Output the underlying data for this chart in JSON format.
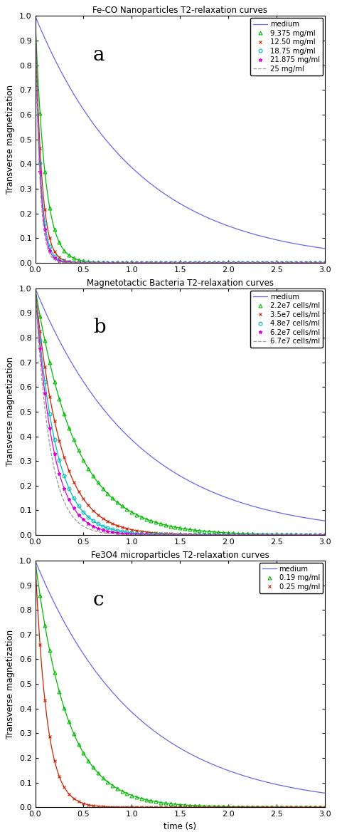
{
  "panel_a": {
    "title": "Fe-CO Nanoparticles T2-relaxation curves",
    "label": "a",
    "series": [
      {
        "label": "medium",
        "color": "#6666ee",
        "linestyle": "-",
        "marker": null,
        "T2": 1.05
      },
      {
        "label": "9.375 mg/ml",
        "color": "#00bb00",
        "linestyle": "-",
        "marker": "^",
        "T2": 0.1
      },
      {
        "label": "12.50 mg/ml",
        "color": "#cc2200",
        "linestyle": "-",
        "marker": "x",
        "T2": 0.065
      },
      {
        "label": "18.75 mg/ml",
        "color": "#00bbbb",
        "linestyle": "-",
        "marker": "o",
        "T2": 0.055
      },
      {
        "label": "21.875 mg/ml",
        "color": "#dd00dd",
        "linestyle": "-",
        "marker": "*",
        "T2": 0.05
      },
      {
        "label": "25 mg/ml",
        "color": "#999999",
        "linestyle": "--",
        "marker": null,
        "T2": 0.045
      }
    ]
  },
  "panel_b": {
    "title": "Magnetotactic Bacteria T2-relaxation curves",
    "label": "b",
    "series": [
      {
        "label": "medium",
        "color": "#6666ee",
        "linestyle": "-",
        "marker": null,
        "T2": 1.05
      },
      {
        "label": "2.2e7 cells/ml",
        "color": "#00bb00",
        "linestyle": "-",
        "marker": "^",
        "T2": 0.42
      },
      {
        "label": "3.5e7 cells/ml",
        "color": "#cc2200",
        "linestyle": "-",
        "marker": "x",
        "T2": 0.26
      },
      {
        "label": "4.8e7 cells/ml",
        "color": "#00bbbb",
        "linestyle": "-",
        "marker": "o",
        "T2": 0.21
      },
      {
        "label": "6.2e7 cells/ml",
        "color": "#dd00dd",
        "linestyle": "-",
        "marker": "*",
        "T2": 0.18
      },
      {
        "label": "6.7e7 cells/ml",
        "color": "#999999",
        "linestyle": "--",
        "marker": null,
        "T2": 0.15
      }
    ]
  },
  "panel_c": {
    "title": "Fe3O4 microparticles T2-relaxation curves",
    "label": "c",
    "series": [
      {
        "label": "medium",
        "color": "#6666ee",
        "linestyle": "-",
        "marker": null,
        "T2": 1.05
      },
      {
        "label": "0.19 mg/ml",
        "color": "#00bb00",
        "linestyle": "-",
        "marker": "^",
        "T2": 0.33
      },
      {
        "label": "0.25 mg/ml",
        "color": "#cc2200",
        "linestyle": "-",
        "marker": "x",
        "T2": 0.12
      }
    ]
  },
  "xlabel": "time (s)",
  "ylabel": "Transverse magnetization",
  "xlim": [
    0,
    3
  ],
  "ylim": [
    0,
    1
  ],
  "marker_times_dense": [
    0.05,
    0.1,
    0.15,
    0.2,
    0.25,
    0.3,
    0.35,
    0.4,
    0.45,
    0.5,
    0.55,
    0.6,
    0.65,
    0.7,
    0.75,
    0.8,
    0.85,
    0.9,
    0.95,
    1.0,
    1.05,
    1.1,
    1.15,
    1.2,
    1.25,
    1.3,
    1.35,
    1.4,
    1.45,
    1.5,
    1.55,
    1.6,
    1.65,
    1.7,
    1.75,
    1.8,
    1.85,
    1.9,
    1.95,
    2.0,
    2.05,
    2.1,
    2.15,
    2.2,
    2.25,
    2.3,
    2.35,
    2.4,
    2.45,
    2.5,
    2.55,
    2.6,
    2.65,
    2.7,
    2.75,
    2.8,
    2.85,
    2.9,
    2.95,
    3.0
  ],
  "xticks": [
    0,
    0.5,
    1,
    1.5,
    2,
    2.5,
    3
  ],
  "yticks": [
    0,
    0.1,
    0.2,
    0.3,
    0.4,
    0.5,
    0.6,
    0.7,
    0.8,
    0.9,
    1
  ]
}
